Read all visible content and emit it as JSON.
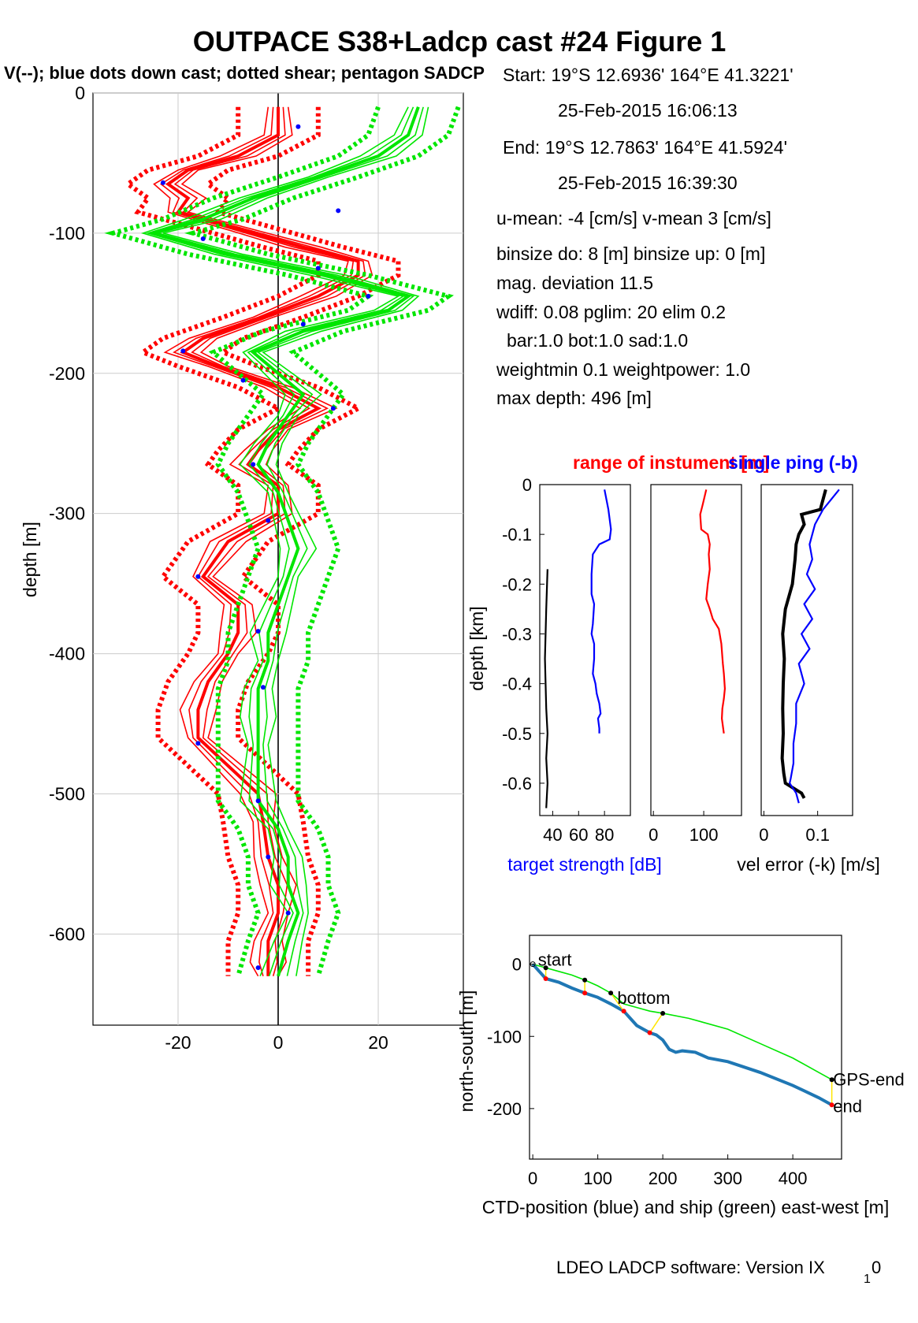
{
  "title": "OUTPACE S38+Ladcp cast #24  Figure 1",
  "subtitle": "V(--); blue dots down cast; dotted shear; pentagon SADCP",
  "colors": {
    "red": "#ff0000",
    "green": "#00e600",
    "blue": "#0000ff",
    "navy": "#1f4ec8",
    "black": "#000000",
    "yellow": "#ffe600",
    "steel": "#1f77b4"
  },
  "info": [
    "Start:  19°S 12.6936'      164°E 41.3221'",
    "25-Feb-2015 16:06:13",
    "End:   19°S 12.7863'      164°E 41.5924'",
    "25-Feb-2015 16:39:30",
    "u-mean:  -4 [cm/s]     v-mean   3 [cm/s]",
    "binsize do: 8 [m]  binsize up:  0 [m]",
    "mag. deviation 11.5",
    "wdiff: 0.08  pglim: 20  elim 0.2",
    "bar:1.0 bot:1.0 sad:1.0",
    "weightmin 0.1  weightpower: 1.0",
    "max depth: 496 [m]"
  ],
  "footer": "LDEO LADCP software: Version IX",
  "footer_sub": "1",
  "footer_end": "0",
  "chart_data": [
    {
      "type": "line",
      "name": "velocity-profile",
      "ylabel": "depth [m]",
      "xlim": [
        -37,
        37
      ],
      "ylim": [
        -665,
        0
      ],
      "xticks": [
        -20,
        0,
        20
      ],
      "yticks": [
        0,
        -100,
        -200,
        -300,
        -400,
        -500,
        -600
      ],
      "series": [
        {
          "color": "red",
          "depth": [
            -10,
            -30,
            -45,
            -55,
            -65,
            -75,
            -85,
            -100,
            -110,
            -120,
            -130,
            -145,
            -160,
            -175,
            -185,
            -195,
            -210,
            -225,
            -240,
            -255,
            -265,
            -280,
            -300,
            -320,
            -345,
            -365,
            -385,
            -400,
            -420,
            -440,
            -460,
            -480,
            -500,
            -520,
            -545,
            -565,
            -585,
            -605,
            -620,
            -630
          ],
          "values": [
            0,
            0,
            -8,
            -18,
            -22,
            -18,
            -20,
            -5,
            5,
            16,
            16,
            8,
            -3,
            -15,
            -19,
            -12,
            0,
            8,
            0,
            -4,
            -6,
            0,
            0,
            -10,
            -15,
            -8,
            -8,
            -10,
            -14,
            -16,
            -16,
            -10,
            -4,
            -3,
            -2,
            0,
            0,
            -2,
            -2,
            -2
          ]
        }
      ],
      "series_green": [
        {
          "color": "green",
          "depth": [
            -10,
            -30,
            -45,
            -60,
            -75,
            -90,
            -100,
            -115,
            -130,
            -145,
            -155,
            -170,
            -185,
            -200,
            -215,
            -230,
            -250,
            -265,
            -285,
            -305,
            -325,
            -345,
            -365,
            -385,
            -405,
            -425,
            -445,
            -465,
            -485,
            -505,
            -525,
            -545,
            -565,
            -585,
            -605,
            -630
          ],
          "values": [
            28,
            26,
            20,
            8,
            -5,
            -15,
            -25,
            -10,
            10,
            26,
            22,
            5,
            -5,
            0,
            5,
            2,
            -2,
            -4,
            0,
            2,
            4,
            2,
            0,
            -2,
            -2,
            -4,
            -4,
            -4,
            -4,
            -4,
            0,
            2,
            2,
            4,
            2,
            0
          ]
        }
      ],
      "dots_depth": [
        -24,
        -64,
        -84,
        -104,
        -125,
        -145,
        -165,
        -184,
        -205,
        -225,
        -265,
        -305,
        -345,
        -384,
        -424,
        -464,
        -505,
        -545,
        -585,
        -624
      ],
      "dots_values": [
        4,
        -23,
        12,
        -15,
        8,
        18,
        5,
        -19,
        -7,
        11,
        -5,
        -2,
        -16,
        -4,
        -3,
        -16,
        -4,
        -2,
        2,
        -4
      ]
    },
    {
      "type": "line",
      "name": "target-strength",
      "xlabel": "target strength [dB]",
      "ylabel": "depth [km]",
      "xlim": [
        30,
        100
      ],
      "ylim": [
        -0.665,
        0
      ],
      "xticks": [
        40,
        60,
        80
      ],
      "yticks": [
        0,
        -0.1,
        -0.2,
        -0.3,
        -0.4,
        -0.5,
        -0.6
      ],
      "series": [
        {
          "color": "blue",
          "x": [
            80,
            83,
            85,
            84,
            76,
            71,
            70,
            70,
            72,
            71,
            70,
            72,
            72,
            71,
            73,
            74,
            76,
            77,
            75,
            76,
            76
          ],
          "y": [
            -0.01,
            -0.05,
            -0.09,
            -0.11,
            -0.12,
            -0.14,
            -0.18,
            -0.22,
            -0.24,
            -0.28,
            -0.3,
            -0.32,
            -0.35,
            -0.38,
            -0.4,
            -0.42,
            -0.44,
            -0.46,
            -0.47,
            -0.49,
            -0.5
          ]
        },
        {
          "color": "black",
          "x": [
            36,
            35,
            34,
            35,
            36,
            35,
            36,
            35
          ],
          "y": [
            -0.17,
            -0.25,
            -0.35,
            -0.45,
            -0.5,
            -0.55,
            -0.6,
            -0.65
          ]
        }
      ]
    },
    {
      "type": "line",
      "name": "range-of-instrument",
      "title": "range of instument [m]",
      "xlim": [
        -5,
        175
      ],
      "ylim": [
        -0.665,
        0
      ],
      "xticks": [
        0,
        100
      ],
      "series": [
        {
          "color": "red",
          "x": [
            105,
            98,
            93,
            95,
            108,
            112,
            110,
            112,
            108,
            105,
            112,
            118,
            130,
            135,
            138,
            140,
            142,
            140,
            137,
            136,
            140
          ],
          "y": [
            -0.01,
            -0.04,
            -0.06,
            -0.09,
            -0.1,
            -0.12,
            -0.14,
            -0.17,
            -0.2,
            -0.23,
            -0.25,
            -0.27,
            -0.29,
            -0.32,
            -0.36,
            -0.38,
            -0.41,
            -0.43,
            -0.45,
            -0.47,
            -0.5
          ]
        }
      ]
    },
    {
      "type": "line",
      "name": "velocity-error",
      "title": "single ping (-b)",
      "xlabel": "vel error (-k) [m/s]",
      "xlim": [
        -0.005,
        0.165
      ],
      "ylim": [
        -0.665,
        0
      ],
      "xticks": [
        0,
        0.1
      ],
      "series": [
        {
          "color": "black",
          "x": [
            0.115,
            0.11,
            0.105,
            0.07,
            0.075,
            0.065,
            0.06,
            0.058,
            0.055,
            0.053,
            0.04,
            0.035,
            0.038,
            0.036,
            0.035,
            0.036,
            0.034,
            0.037,
            0.04,
            0.055,
            0.07,
            0.075
          ],
          "y": [
            -0.01,
            -0.03,
            -0.05,
            -0.06,
            -0.08,
            -0.1,
            -0.12,
            -0.15,
            -0.18,
            -0.2,
            -0.25,
            -0.3,
            -0.35,
            -0.4,
            -0.45,
            -0.5,
            -0.55,
            -0.58,
            -0.6,
            -0.61,
            -0.62,
            -0.63
          ]
        },
        {
          "color": "blue",
          "x": [
            0.14,
            0.125,
            0.11,
            0.095,
            0.085,
            0.09,
            0.08,
            0.095,
            0.075,
            0.09,
            0.07,
            0.085,
            0.065,
            0.075,
            0.06,
            0.06,
            0.055,
            0.055,
            0.05,
            0.048,
            0.06,
            0.065
          ],
          "y": [
            -0.01,
            -0.03,
            -0.05,
            -0.08,
            -0.12,
            -0.15,
            -0.18,
            -0.21,
            -0.24,
            -0.27,
            -0.3,
            -0.33,
            -0.36,
            -0.4,
            -0.44,
            -0.48,
            -0.52,
            -0.56,
            -0.59,
            -0.6,
            -0.62,
            -0.64
          ]
        }
      ]
    },
    {
      "type": "line",
      "name": "ship-track",
      "xlabel": "CTD-position (blue) and ship (green) east-west [m]",
      "ylabel": "north-south [m]",
      "xlim": [
        -5,
        475
      ],
      "ylim": [
        -270,
        40
      ],
      "xticks": [
        0,
        100,
        200,
        300,
        400
      ],
      "yticks": [
        0,
        -100,
        -200
      ],
      "labels": {
        "start": "start",
        "bottom": "bottom",
        "gps_end": "GPS-end",
        "end": "end"
      },
      "series": [
        {
          "color": "steel",
          "x": [
            0,
            10,
            20,
            40,
            60,
            80,
            100,
            120,
            140,
            150,
            160,
            170,
            180,
            190,
            200,
            210,
            220,
            230,
            250,
            270,
            300,
            350,
            400,
            440,
            460
          ],
          "y": [
            0,
            -10,
            -20,
            -25,
            -33,
            -40,
            -46,
            -55,
            -65,
            -75,
            -85,
            -90,
            -95,
            -98,
            -105,
            -118,
            -122,
            -120,
            -122,
            -130,
            -135,
            -150,
            -168,
            -185,
            -195
          ]
        },
        {
          "color": "green",
          "x": [
            0,
            20,
            40,
            60,
            80,
            100,
            120,
            140,
            160,
            180,
            200,
            240,
            300,
            350,
            400,
            440,
            460
          ],
          "y": [
            0,
            -5,
            -10,
            -15,
            -22,
            -30,
            -40,
            -55,
            -60,
            -65,
            -68,
            -75,
            -90,
            -110,
            -130,
            -150,
            -160
          ]
        }
      ]
    }
  ]
}
